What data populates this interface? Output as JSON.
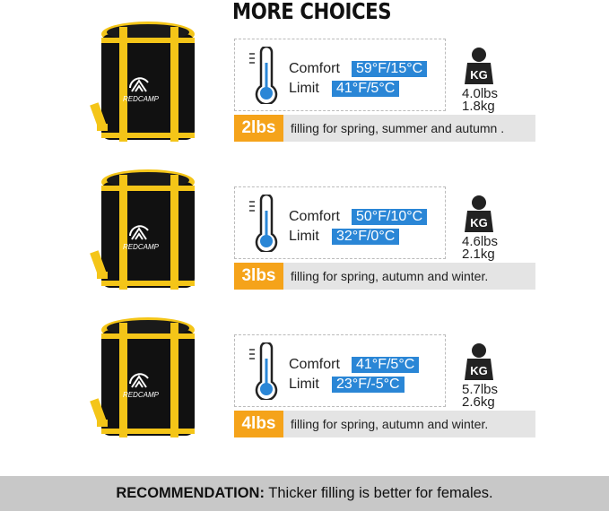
{
  "title": "MORE CHOICES",
  "brand": "REDCAMP",
  "colors": {
    "accent_blue": "#2a86d6",
    "orange": "#f5a31a",
    "bag_yellow": "#f4c518",
    "bag_black": "#111111"
  },
  "products": [
    {
      "comfort_label": "Comfort",
      "comfort": "59°F/15°C",
      "limit_label": "Limit",
      "limit": "41°F/5°C",
      "weight_lbs": "4.0lbs",
      "weight_kg": "1.8kg",
      "kg_icon": "KG",
      "filling": "2lbs",
      "description": "filling for spring, summer and autumn ."
    },
    {
      "comfort_label": "Comfort",
      "comfort": "50°F/10°C",
      "limit_label": "Limit",
      "limit": "32°F/0°C",
      "weight_lbs": "4.6lbs",
      "weight_kg": "2.1kg",
      "kg_icon": "KG",
      "filling": "3lbs",
      "description": "filling for spring, autumn and winter."
    },
    {
      "comfort_label": "Comfort",
      "comfort": "41°F/5°C",
      "limit_label": "Limit",
      "limit": "23°F/-5°C",
      "weight_lbs": "5.7lbs",
      "weight_kg": "2.6kg",
      "kg_icon": "KG",
      "filling": "4lbs",
      "description": "filling for spring, autumn and winter."
    }
  ],
  "footer": {
    "label": "RECOMMENDATION:",
    "text": "Thicker filling is better for females."
  }
}
